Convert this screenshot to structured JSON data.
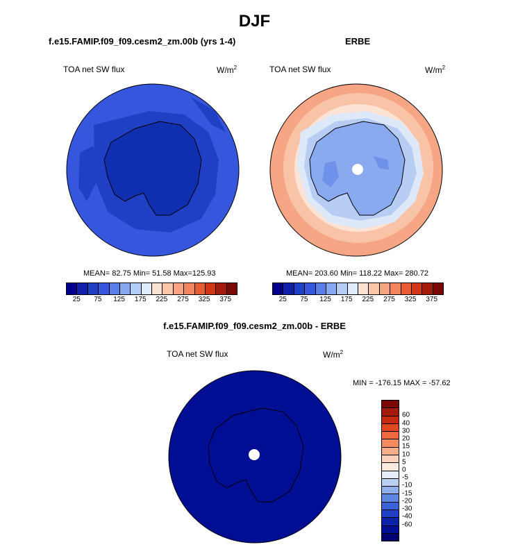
{
  "main_title": "DJF",
  "panels": {
    "model": {
      "title": "f.e15.FAMIP.f09_f09.cesm2_zm.00b (yrs 1-4)",
      "variable": "TOA net SW flux",
      "units_base": "W/m",
      "units_sup": "2",
      "stats": "MEAN= 82.75  Min= 51.58  Max=125.93"
    },
    "obs": {
      "title": "ERBE",
      "variable": "TOA net SW flux",
      "units_base": "W/m",
      "units_sup": "2",
      "stats": "MEAN= 203.60  Min= 118.22  Max= 280.72"
    },
    "diff": {
      "title": "f.e15.FAMIP.f09_f09.cesm2_zm.00b - ERBE",
      "variable": "TOA net SW flux",
      "units_base": "W/m",
      "units_sup": "2",
      "stats": "MIN = -176.15 MAX = -57.62"
    }
  },
  "colorbar_top": {
    "colors": [
      "#00008c",
      "#0f1fa8",
      "#1f3fc4",
      "#3556dd",
      "#5a7ee8",
      "#87a8f2",
      "#b3cdf7",
      "#dfecfb",
      "#fde3d3",
      "#fcc6ab",
      "#f8a584",
      "#f3845d",
      "#ea5c34",
      "#d23616",
      "#a41b0c",
      "#7a0805"
    ],
    "tick_labels": [
      "25",
      "75",
      "125",
      "175",
      "225",
      "275",
      "325",
      "375"
    ]
  },
  "colorbar_diff": {
    "colors": [
      "#7a0805",
      "#a41b0c",
      "#c52a10",
      "#e0481f",
      "#ee6a3e",
      "#f48a62",
      "#f8ad8b",
      "#fcd2bc",
      "#fdebe0",
      "#e6eefa",
      "#b9cff4",
      "#8eafeb",
      "#5f86e0",
      "#3a62d6",
      "#1f3fc4",
      "#0c22a7",
      "#000e94",
      "#00006e"
    ],
    "tick_labels": [
      "60",
      "40",
      "30",
      "20",
      "15",
      "10",
      "5",
      "0",
      "-5",
      "-10",
      "-15",
      "-20",
      "-30",
      "-40",
      "-60"
    ]
  },
  "map_colors": {
    "model_ocean": "#3556dd",
    "model_mid": "#1f3fc4",
    "model_land": "#0f2fb0",
    "obs_outer": "#f6a585",
    "obs_mid1": "#f9c3a7",
    "obs_mid2": "#fde3d3",
    "obs_ring": "#dde8f8",
    "obs_ring2": "#b8cdf4",
    "obs_land": "#8aaaf0",
    "obs_land_dark": "#6e92ea",
    "diff_fill": "#000e94"
  }
}
